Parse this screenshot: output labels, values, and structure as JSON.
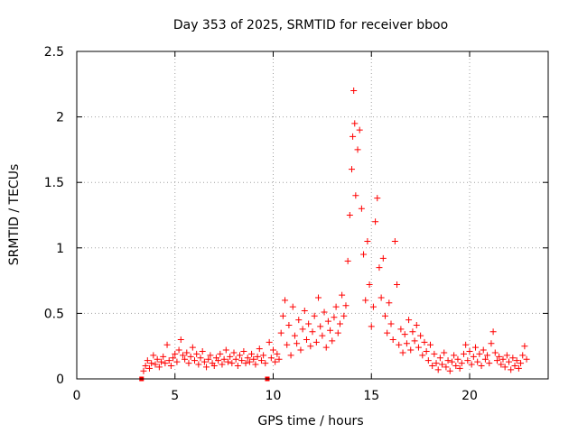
{
  "chart_data": {
    "type": "scatter",
    "title": "Day 353 of 2025, SRMTID for receiver bboo",
    "xlabel": "GPS time / hours",
    "ylabel": "SRMTID / TECUs",
    "xlim": [
      0,
      24
    ],
    "ylim": [
      0,
      2.5
    ],
    "xticks": [
      0,
      5,
      10,
      15,
      20
    ],
    "xtick_labels": [
      "0",
      "5",
      "10",
      "15",
      "20"
    ],
    "yticks": [
      0,
      0.5,
      1,
      1.5,
      2,
      2.5
    ],
    "ytick_labels": [
      "0",
      "0.5",
      "1",
      "1.5",
      "2",
      "2.5"
    ],
    "grid": true,
    "marker": "plus",
    "color": "#ff0000",
    "series": [
      {
        "name": "SRMTID",
        "points": [
          [
            3.3,
            0.0
          ],
          [
            3.4,
            0.06
          ],
          [
            3.5,
            0.1
          ],
          [
            3.6,
            0.14
          ],
          [
            3.7,
            0.08
          ],
          [
            3.8,
            0.12
          ],
          [
            3.9,
            0.18
          ],
          [
            4.0,
            0.11
          ],
          [
            4.1,
            0.15
          ],
          [
            4.2,
            0.09
          ],
          [
            4.3,
            0.13
          ],
          [
            4.4,
            0.17
          ],
          [
            4.5,
            0.12
          ],
          [
            4.6,
            0.26
          ],
          [
            4.7,
            0.14
          ],
          [
            4.8,
            0.1
          ],
          [
            4.9,
            0.16
          ],
          [
            5.0,
            0.19
          ],
          [
            5.1,
            0.13
          ],
          [
            5.2,
            0.22
          ],
          [
            5.3,
            0.3
          ],
          [
            5.4,
            0.18
          ],
          [
            5.5,
            0.15
          ],
          [
            5.6,
            0.2
          ],
          [
            5.7,
            0.12
          ],
          [
            5.8,
            0.17
          ],
          [
            5.9,
            0.24
          ],
          [
            6.0,
            0.14
          ],
          [
            6.1,
            0.19
          ],
          [
            6.2,
            0.11
          ],
          [
            6.3,
            0.16
          ],
          [
            6.4,
            0.21
          ],
          [
            6.5,
            0.13
          ],
          [
            6.6,
            0.09
          ],
          [
            6.7,
            0.15
          ],
          [
            6.8,
            0.18
          ],
          [
            6.9,
            0.12
          ],
          [
            7.0,
            0.1
          ],
          [
            7.1,
            0.16
          ],
          [
            7.2,
            0.14
          ],
          [
            7.3,
            0.19
          ],
          [
            7.4,
            0.11
          ],
          [
            7.5,
            0.15
          ],
          [
            7.6,
            0.22
          ],
          [
            7.7,
            0.13
          ],
          [
            7.8,
            0.17
          ],
          [
            7.9,
            0.12
          ],
          [
            8.0,
            0.2
          ],
          [
            8.1,
            0.15
          ],
          [
            8.2,
            0.1
          ],
          [
            8.3,
            0.18
          ],
          [
            8.4,
            0.14
          ],
          [
            8.5,
            0.21
          ],
          [
            8.6,
            0.12
          ],
          [
            8.7,
            0.16
          ],
          [
            8.8,
            0.13
          ],
          [
            8.9,
            0.19
          ],
          [
            9.0,
            0.15
          ],
          [
            9.1,
            0.11
          ],
          [
            9.2,
            0.17
          ],
          [
            9.3,
            0.23
          ],
          [
            9.4,
            0.14
          ],
          [
            9.5,
            0.18
          ],
          [
            9.6,
            0.12
          ],
          [
            9.7,
            0.0
          ],
          [
            9.8,
            0.28
          ],
          [
            9.9,
            0.16
          ],
          [
            10.0,
            0.22
          ],
          [
            10.1,
            0.13
          ],
          [
            10.2,
            0.19
          ],
          [
            10.3,
            0.15
          ],
          [
            10.4,
            0.35
          ],
          [
            10.5,
            0.48
          ],
          [
            10.6,
            0.6
          ],
          [
            10.7,
            0.26
          ],
          [
            10.8,
            0.41
          ],
          [
            10.9,
            0.18
          ],
          [
            11.0,
            0.55
          ],
          [
            11.1,
            0.33
          ],
          [
            11.2,
            0.27
          ],
          [
            11.3,
            0.45
          ],
          [
            11.4,
            0.22
          ],
          [
            11.5,
            0.38
          ],
          [
            11.6,
            0.52
          ],
          [
            11.7,
            0.3
          ],
          [
            11.8,
            0.42
          ],
          [
            11.9,
            0.25
          ],
          [
            12.0,
            0.36
          ],
          [
            12.1,
            0.48
          ],
          [
            12.2,
            0.28
          ],
          [
            12.3,
            0.62
          ],
          [
            12.4,
            0.4
          ],
          [
            12.5,
            0.33
          ],
          [
            12.6,
            0.51
          ],
          [
            12.7,
            0.24
          ],
          [
            12.8,
            0.44
          ],
          [
            12.9,
            0.37
          ],
          [
            13.0,
            0.29
          ],
          [
            13.1,
            0.47
          ],
          [
            13.2,
            0.55
          ],
          [
            13.3,
            0.35
          ],
          [
            13.4,
            0.42
          ],
          [
            13.5,
            0.64
          ],
          [
            13.6,
            0.48
          ],
          [
            13.7,
            0.56
          ],
          [
            13.8,
            0.9
          ],
          [
            13.9,
            1.25
          ],
          [
            14.0,
            1.6
          ],
          [
            14.05,
            1.85
          ],
          [
            14.1,
            2.2
          ],
          [
            14.15,
            1.95
          ],
          [
            14.2,
            1.4
          ],
          [
            14.3,
            1.75
          ],
          [
            14.4,
            1.9
          ],
          [
            14.5,
            1.3
          ],
          [
            14.6,
            0.95
          ],
          [
            14.7,
            0.6
          ],
          [
            14.8,
            1.05
          ],
          [
            14.9,
            0.72
          ],
          [
            15.0,
            0.4
          ],
          [
            15.1,
            0.55
          ],
          [
            15.2,
            1.2
          ],
          [
            15.3,
            1.38
          ],
          [
            15.4,
            0.85
          ],
          [
            15.5,
            0.62
          ],
          [
            15.6,
            0.92
          ],
          [
            15.7,
            0.48
          ],
          [
            15.8,
            0.35
          ],
          [
            15.9,
            0.58
          ],
          [
            16.0,
            0.42
          ],
          [
            16.1,
            0.3
          ],
          [
            16.2,
            1.05
          ],
          [
            16.3,
            0.72
          ],
          [
            16.4,
            0.26
          ],
          [
            16.5,
            0.38
          ],
          [
            16.6,
            0.2
          ],
          [
            16.7,
            0.34
          ],
          [
            16.8,
            0.27
          ],
          [
            16.9,
            0.45
          ],
          [
            17.0,
            0.22
          ],
          [
            17.1,
            0.36
          ],
          [
            17.2,
            0.29
          ],
          [
            17.3,
            0.41
          ],
          [
            17.4,
            0.24
          ],
          [
            17.5,
            0.33
          ],
          [
            17.6,
            0.18
          ],
          [
            17.7,
            0.28
          ],
          [
            17.8,
            0.21
          ],
          [
            17.9,
            0.14
          ],
          [
            18.0,
            0.26
          ],
          [
            18.1,
            0.1
          ],
          [
            18.2,
            0.19
          ],
          [
            18.3,
            0.12
          ],
          [
            18.4,
            0.07
          ],
          [
            18.5,
            0.16
          ],
          [
            18.6,
            0.11
          ],
          [
            18.7,
            0.2
          ],
          [
            18.8,
            0.09
          ],
          [
            18.9,
            0.14
          ],
          [
            19.0,
            0.06
          ],
          [
            19.1,
            0.13
          ],
          [
            19.2,
            0.18
          ],
          [
            19.3,
            0.1
          ],
          [
            19.4,
            0.15
          ],
          [
            19.5,
            0.08
          ],
          [
            19.6,
            0.12
          ],
          [
            19.7,
            0.19
          ],
          [
            19.8,
            0.26
          ],
          [
            19.9,
            0.14
          ],
          [
            20.0,
            0.21
          ],
          [
            20.1,
            0.11
          ],
          [
            20.2,
            0.17
          ],
          [
            20.3,
            0.24
          ],
          [
            20.4,
            0.13
          ],
          [
            20.5,
            0.19
          ],
          [
            20.6,
            0.1
          ],
          [
            20.7,
            0.22
          ],
          [
            20.8,
            0.15
          ],
          [
            20.9,
            0.18
          ],
          [
            21.0,
            0.12
          ],
          [
            21.1,
            0.27
          ],
          [
            21.2,
            0.36
          ],
          [
            21.3,
            0.2
          ],
          [
            21.4,
            0.14
          ],
          [
            21.5,
            0.17
          ],
          [
            21.6,
            0.11
          ],
          [
            21.7,
            0.15
          ],
          [
            21.8,
            0.09
          ],
          [
            21.9,
            0.18
          ],
          [
            22.0,
            0.13
          ],
          [
            22.1,
            0.07
          ],
          [
            22.2,
            0.16
          ],
          [
            22.3,
            0.1
          ],
          [
            22.4,
            0.14
          ],
          [
            22.5,
            0.08
          ],
          [
            22.6,
            0.12
          ],
          [
            22.7,
            0.18
          ],
          [
            22.8,
            0.25
          ],
          [
            22.9,
            0.15
          ]
        ]
      }
    ]
  }
}
